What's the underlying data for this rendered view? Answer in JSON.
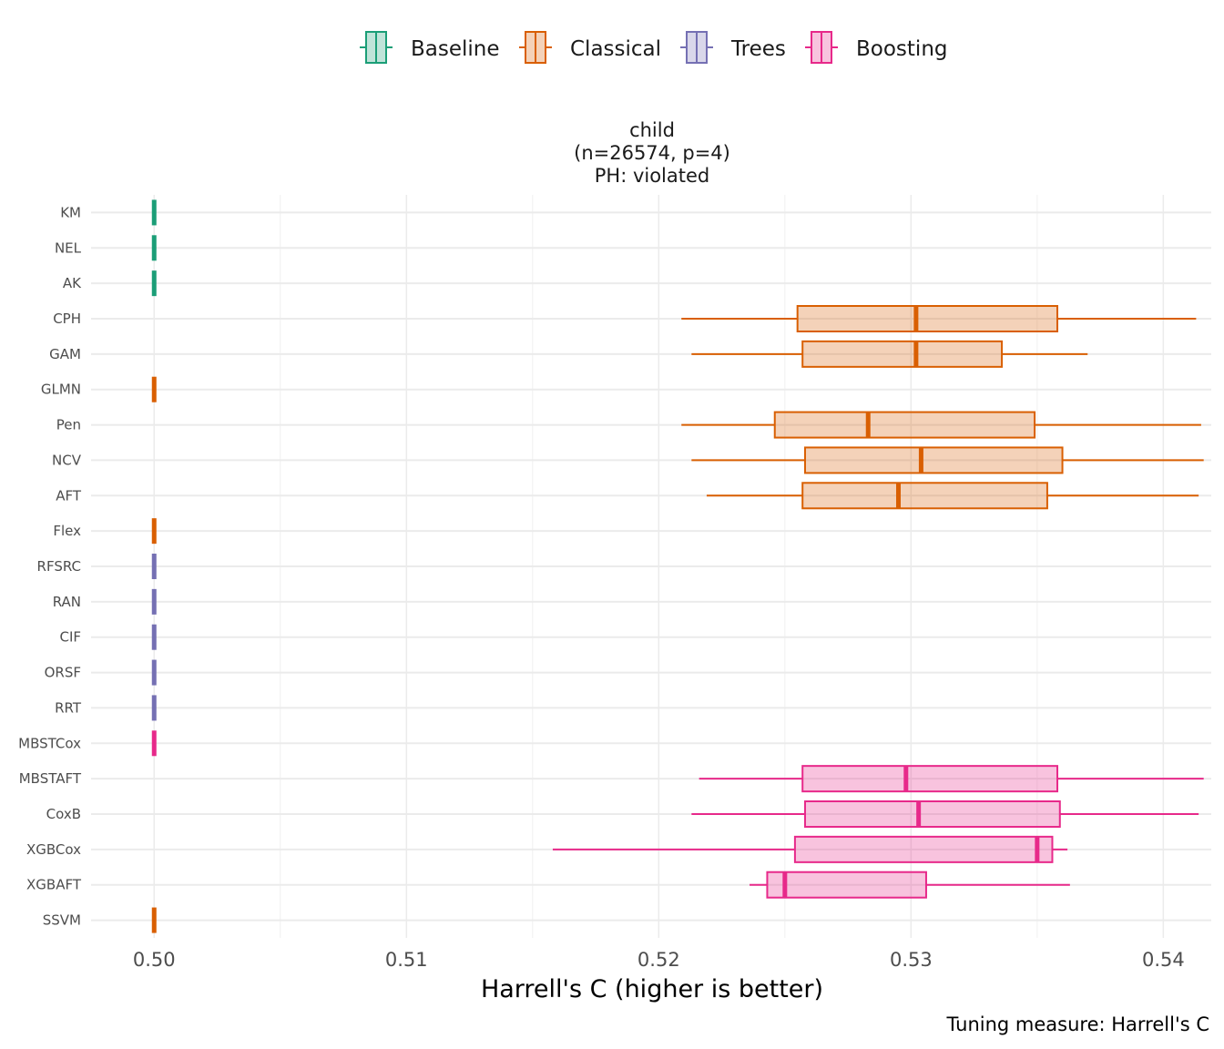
{
  "chart_data": {
    "type": "boxplot",
    "facet_title": [
      "child",
      "(n=26574, p=4)",
      "PH: violated"
    ],
    "xlabel": "Harrell's C (higher is better)",
    "caption": "Tuning measure: Harrell's C",
    "xlim": [
      0.4975,
      0.5419
    ],
    "xticks": [
      0.5,
      0.51,
      0.52,
      0.53,
      0.54
    ],
    "xtick_labels": [
      "0.50",
      "0.51",
      "0.52",
      "0.53",
      "0.54"
    ],
    "grid": true,
    "legend_position": "top",
    "groups": [
      {
        "name": "Baseline",
        "color": "#1b9e77"
      },
      {
        "name": "Classical",
        "color": "#d95f02"
      },
      {
        "name": "Trees",
        "color": "#7570b3"
      },
      {
        "name": "Boosting",
        "color": "#e7298a"
      }
    ],
    "models": [
      {
        "name": "KM",
        "group": "Baseline",
        "whisker_low": 0.5,
        "q1": 0.5,
        "median": 0.5,
        "q3": 0.5,
        "whisker_high": 0.5
      },
      {
        "name": "NEL",
        "group": "Baseline",
        "whisker_low": 0.5,
        "q1": 0.5,
        "median": 0.5,
        "q3": 0.5,
        "whisker_high": 0.5
      },
      {
        "name": "AK",
        "group": "Baseline",
        "whisker_low": 0.5,
        "q1": 0.5,
        "median": 0.5,
        "q3": 0.5,
        "whisker_high": 0.5
      },
      {
        "name": "CPH",
        "group": "Classical",
        "whisker_low": 0.5209,
        "q1": 0.5255,
        "median": 0.5302,
        "q3": 0.5358,
        "whisker_high": 0.5413
      },
      {
        "name": "GAM",
        "group": "Classical",
        "whisker_low": 0.5213,
        "q1": 0.5257,
        "median": 0.5302,
        "q3": 0.5336,
        "whisker_high": 0.537
      },
      {
        "name": "GLMN",
        "group": "Classical",
        "whisker_low": 0.5,
        "q1": 0.5,
        "median": 0.5,
        "q3": 0.5,
        "whisker_high": 0.5
      },
      {
        "name": "Pen",
        "group": "Classical",
        "whisker_low": 0.5209,
        "q1": 0.5246,
        "median": 0.5283,
        "q3": 0.5349,
        "whisker_high": 0.5415
      },
      {
        "name": "NCV",
        "group": "Classical",
        "whisker_low": 0.5213,
        "q1": 0.5258,
        "median": 0.5304,
        "q3": 0.536,
        "whisker_high": 0.5416
      },
      {
        "name": "AFT",
        "group": "Classical",
        "whisker_low": 0.5219,
        "q1": 0.5257,
        "median": 0.5295,
        "q3": 0.5354,
        "whisker_high": 0.5414
      },
      {
        "name": "Flex",
        "group": "Classical",
        "whisker_low": 0.5,
        "q1": 0.5,
        "median": 0.5,
        "q3": 0.5,
        "whisker_high": 0.5
      },
      {
        "name": "RFSRC",
        "group": "Trees",
        "whisker_low": 0.5,
        "q1": 0.5,
        "median": 0.5,
        "q3": 0.5,
        "whisker_high": 0.5
      },
      {
        "name": "RAN",
        "group": "Trees",
        "whisker_low": 0.5,
        "q1": 0.5,
        "median": 0.5,
        "q3": 0.5,
        "whisker_high": 0.5
      },
      {
        "name": "CIF",
        "group": "Trees",
        "whisker_low": 0.5,
        "q1": 0.5,
        "median": 0.5,
        "q3": 0.5,
        "whisker_high": 0.5
      },
      {
        "name": "ORSF",
        "group": "Trees",
        "whisker_low": 0.5,
        "q1": 0.5,
        "median": 0.5,
        "q3": 0.5,
        "whisker_high": 0.5
      },
      {
        "name": "RRT",
        "group": "Trees",
        "whisker_low": 0.5,
        "q1": 0.5,
        "median": 0.5,
        "q3": 0.5,
        "whisker_high": 0.5
      },
      {
        "name": "MBSTCox",
        "group": "Boosting",
        "whisker_low": 0.5,
        "q1": 0.5,
        "median": 0.5,
        "q3": 0.5,
        "whisker_high": 0.5
      },
      {
        "name": "MBSTAFT",
        "group": "Boosting",
        "whisker_low": 0.5216,
        "q1": 0.5257,
        "median": 0.5298,
        "q3": 0.5358,
        "whisker_high": 0.5416
      },
      {
        "name": "CoxB",
        "group": "Boosting",
        "whisker_low": 0.5213,
        "q1": 0.5258,
        "median": 0.5303,
        "q3": 0.5359,
        "whisker_high": 0.5414
      },
      {
        "name": "XGBCox",
        "group": "Boosting",
        "whisker_low": 0.5158,
        "q1": 0.5254,
        "median": 0.535,
        "q3": 0.5356,
        "whisker_high": 0.5362
      },
      {
        "name": "XGBAFT",
        "group": "Boosting",
        "whisker_low": 0.5236,
        "q1": 0.5243,
        "median": 0.525,
        "q3": 0.5306,
        "whisker_high": 0.5363
      },
      {
        "name": "SSVM",
        "group": "Classical",
        "whisker_low": 0.5,
        "q1": 0.5,
        "median": 0.5,
        "q3": 0.5,
        "whisker_high": 0.5
      }
    ]
  }
}
